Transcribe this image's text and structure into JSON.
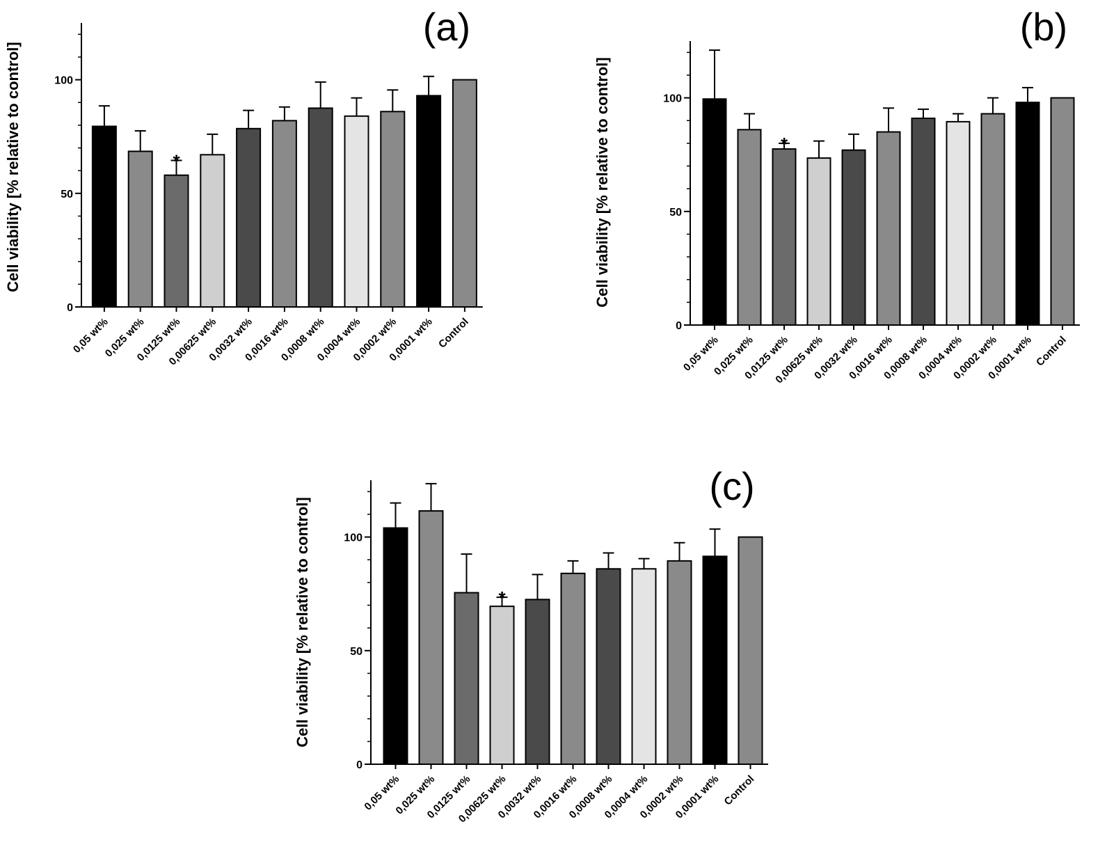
{
  "chart_data": [
    {
      "type": "bar",
      "panel_label": "(a)",
      "ylabel": "Cell viability [% relative to control]",
      "categories": [
        "0,05 wt%",
        "0,025 wt%",
        "0,0125 wt%",
        "0,00625 wt%",
        "0,0032 wt%",
        "0,0016 wt%",
        "0,0008 wt%",
        "0,0004 wt%",
        "0,0002 wt%",
        "0,0001 wt%",
        "Control"
      ],
      "values": [
        79.5,
        68.5,
        58,
        67,
        78.5,
        82,
        87.5,
        84,
        86,
        93,
        100
      ],
      "errors": [
        9,
        9,
        6.5,
        9,
        8,
        6,
        11.5,
        8,
        9.5,
        8.5,
        0
      ],
      "bar_colors": [
        "#000000",
        "#8a8a8a",
        "#6b6b6b",
        "#cfcfcf",
        "#4a4a4a",
        "#8a8a8a",
        "#4a4a4a",
        "#e4e4e4",
        "#8a8a8a",
        "#000000",
        "#8a8a8a"
      ],
      "significant": [
        "",
        "",
        "*",
        "",
        "",
        "",
        "",
        "",
        "",
        "",
        ""
      ],
      "yticks": [
        "0",
        "50",
        "100"
      ],
      "ylim": [
        0,
        125
      ]
    },
    {
      "type": "bar",
      "panel_label": "(b)",
      "ylabel": "Cell viability [% relative to control]",
      "categories": [
        "0,05 wt%",
        "0,025 wt%",
        "0,0125 wt%",
        "0,00625 wt%",
        "0,0032 wt%",
        "0,0016 wt%",
        "0,0008 wt%",
        "0,0004 wt%",
        "0,0002 wt%",
        "0,0001 wt%",
        "Control"
      ],
      "values": [
        99.5,
        86,
        77.5,
        73.5,
        77,
        85,
        91,
        89.5,
        93,
        98,
        100
      ],
      "errors": [
        21.5,
        7,
        2.5,
        7.5,
        7,
        10.5,
        4,
        3.5,
        7,
        6.5,
        0
      ],
      "bar_colors": [
        "#000000",
        "#8a8a8a",
        "#6b6b6b",
        "#cfcfcf",
        "#4a4a4a",
        "#8a8a8a",
        "#4a4a4a",
        "#e4e4e4",
        "#8a8a8a",
        "#000000",
        "#8a8a8a"
      ],
      "significant": [
        "",
        "",
        "*",
        "",
        "",
        "",
        "",
        "",
        "",
        "",
        ""
      ],
      "yticks": [
        "0",
        "50",
        "100"
      ],
      "ylim": [
        0,
        125
      ]
    },
    {
      "type": "bar",
      "panel_label": "(c)",
      "ylabel": "Cell viability [% relative to control]",
      "categories": [
        "0,05 wt%",
        "0,025 wt%",
        "0,0125 wt%",
        "0,00625 wt%",
        "0,0032 wt%",
        "0,0016 wt%",
        "0,0008 wt%",
        "0,0004 wt%",
        "0,0002 wt%",
        "0,0001 wt%",
        "Control"
      ],
      "values": [
        104,
        111.5,
        75.5,
        69.5,
        72.5,
        84,
        86,
        86,
        89.5,
        91.5,
        100
      ],
      "errors": [
        11,
        12,
        17,
        4,
        11,
        5.5,
        7,
        4.5,
        8,
        12,
        0
      ],
      "bar_colors": [
        "#000000",
        "#8a8a8a",
        "#6b6b6b",
        "#cfcfcf",
        "#4a4a4a",
        "#8a8a8a",
        "#4a4a4a",
        "#e4e4e4",
        "#8a8a8a",
        "#000000",
        "#8a8a8a"
      ],
      "significant": [
        "",
        "",
        "",
        "*",
        "",
        "",
        "",
        "",
        "",
        "",
        ""
      ],
      "yticks": [
        "0",
        "50",
        "100"
      ],
      "ylim": [
        0,
        125
      ]
    }
  ]
}
